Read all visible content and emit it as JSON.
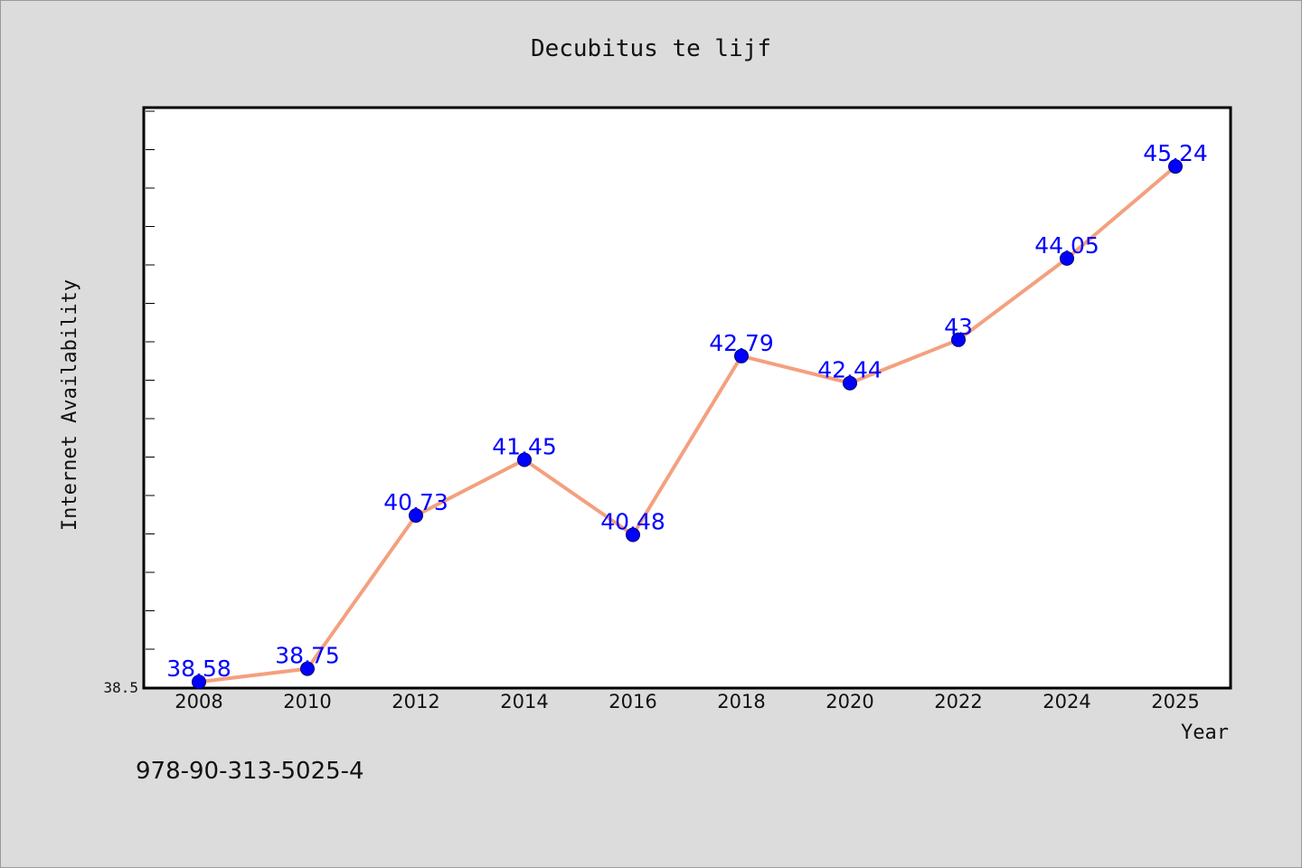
{
  "chart_data": {
    "type": "line",
    "title": "Decubitus te lijf",
    "xlabel": "Year",
    "ylabel": "Internet Availability",
    "categories": [
      "2008",
      "2010",
      "2012",
      "2014",
      "2016",
      "2018",
      "2020",
      "2022",
      "2024",
      "2025"
    ],
    "series": [
      {
        "values": [
          38.58,
          38.75,
          40.73,
          41.45,
          40.48,
          42.79,
          42.44,
          43,
          44.05,
          45.24
        ],
        "labels": [
          "38.58",
          "38.75",
          "40.73",
          "41.45",
          "40.48",
          "42.79",
          "42.44",
          "43",
          "44.05",
          "45.24"
        ]
      }
    ],
    "y_tick_labels": [
      "38.5"
    ],
    "ylim": [
      38.5,
      46.0
    ],
    "grid": false,
    "legend": "none",
    "colors": {
      "line": "#f4a07e",
      "marker": "#0000ff",
      "data_label": "#0000ff",
      "plot_background": "#ffffff",
      "page_background": "#dcdcdc"
    }
  },
  "footer": {
    "isbn": "978-90-313-5025-4"
  }
}
